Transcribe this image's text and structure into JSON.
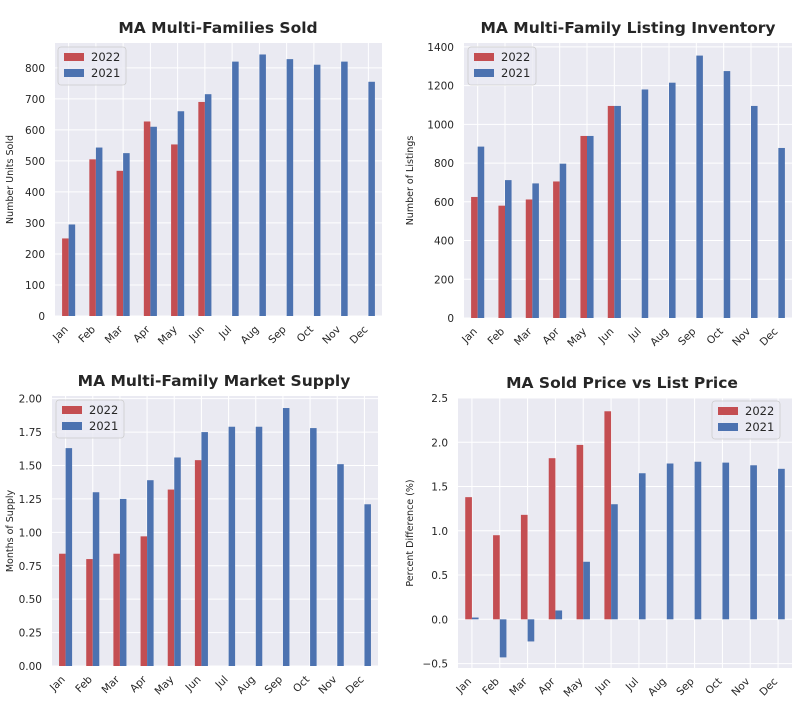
{
  "colors": {
    "s2022": "#c44e52",
    "s2021": "#4c72b0",
    "plot_bg": "#eaeaf2",
    "grid": "#ffffff"
  },
  "chart_data": [
    {
      "type": "bar",
      "title": "MA Multi-Families Sold",
      "ylabel": "Number Units Sold",
      "xlabel": "",
      "categories": [
        "Jan",
        "Feb",
        "Mar",
        "Apr",
        "May",
        "Jun",
        "Jul",
        "Aug",
        "Sep",
        "Oct",
        "Nov",
        "Dec"
      ],
      "ylim": [
        0,
        880
      ],
      "yticks": [
        0,
        100,
        200,
        300,
        400,
        500,
        600,
        700,
        800
      ],
      "ytick_labels": [
        "0",
        "100",
        "200",
        "300",
        "400",
        "500",
        "600",
        "700",
        "800"
      ],
      "legend_position": "upper-left",
      "grid": true,
      "series": [
        {
          "name": "2022",
          "values": [
            250,
            505,
            468,
            627,
            553,
            690,
            null,
            null,
            null,
            null,
            null,
            null
          ]
        },
        {
          "name": "2021",
          "values": [
            295,
            543,
            525,
            610,
            660,
            715,
            820,
            843,
            828,
            810,
            820,
            755
          ]
        }
      ]
    },
    {
      "type": "bar",
      "title": "MA Multi-Family Listing Inventory",
      "ylabel": "Number of Listings",
      "xlabel": "",
      "categories": [
        "Jan",
        "Feb",
        "Mar",
        "Apr",
        "May",
        "Jun",
        "Jul",
        "Aug",
        "Sep",
        "Oct",
        "Nov",
        "Dec"
      ],
      "ylim": [
        0,
        1420
      ],
      "yticks": [
        0,
        200,
        400,
        600,
        800,
        1000,
        1200,
        1400
      ],
      "ytick_labels": [
        "0",
        "200",
        "400",
        "600",
        "800",
        "1000",
        "1200",
        "1400"
      ],
      "legend_position": "upper-left",
      "grid": true,
      "series": [
        {
          "name": "2022",
          "values": [
            625,
            580,
            612,
            705,
            940,
            1095,
            null,
            null,
            null,
            null,
            null,
            null
          ]
        },
        {
          "name": "2021",
          "values": [
            885,
            712,
            695,
            797,
            940,
            1095,
            1180,
            1215,
            1355,
            1275,
            1095,
            878
          ]
        }
      ]
    },
    {
      "type": "bar",
      "title": "MA Multi-Family Market Supply",
      "ylabel": "Months of Supply",
      "xlabel": "",
      "categories": [
        "Jan",
        "Feb",
        "Mar",
        "Apr",
        "May",
        "Jun",
        "Jul",
        "Aug",
        "Sep",
        "Oct",
        "Nov",
        "Dec"
      ],
      "ylim": [
        0,
        2.02
      ],
      "yticks": [
        0,
        0.25,
        0.5,
        0.75,
        1.0,
        1.25,
        1.5,
        1.75,
        2.0
      ],
      "ytick_labels": [
        "0.00",
        "0.25",
        "0.50",
        "0.75",
        "1.00",
        "1.25",
        "1.50",
        "1.75",
        "2.00"
      ],
      "legend_position": "upper-left",
      "grid": true,
      "series": [
        {
          "name": "2022",
          "values": [
            0.84,
            0.8,
            0.84,
            0.97,
            1.32,
            1.54,
            null,
            null,
            null,
            null,
            null,
            null
          ]
        },
        {
          "name": "2021",
          "values": [
            1.63,
            1.3,
            1.25,
            1.39,
            1.56,
            1.75,
            1.79,
            1.79,
            1.93,
            1.78,
            1.51,
            1.21
          ]
        }
      ]
    },
    {
      "type": "bar",
      "title": "MA Sold Price vs List Price",
      "ylabel": "Percent Difference (%)",
      "xlabel": "",
      "categories": [
        "Jan",
        "Feb",
        "Mar",
        "Apr",
        "May",
        "Jun",
        "Jul",
        "Aug",
        "Sep",
        "Oct",
        "Nov",
        "Dec"
      ],
      "ylim": [
        -0.55,
        2.5
      ],
      "yticks": [
        -0.5,
        0,
        0.5,
        1.0,
        1.5,
        2.0,
        2.5
      ],
      "ytick_labels": [
        "−0.5",
        "0.0",
        "0.5",
        "1.0",
        "1.5",
        "2.0",
        "2.5"
      ],
      "legend_position": "upper-right",
      "grid": true,
      "series": [
        {
          "name": "2022",
          "values": [
            1.38,
            0.95,
            1.18,
            1.82,
            1.97,
            2.35,
            null,
            null,
            null,
            null,
            null,
            null
          ]
        },
        {
          "name": "2021",
          "values": [
            0.02,
            -0.43,
            -0.25,
            0.1,
            0.65,
            1.3,
            1.65,
            1.76,
            1.78,
            1.77,
            1.74,
            1.7
          ]
        }
      ]
    }
  ]
}
